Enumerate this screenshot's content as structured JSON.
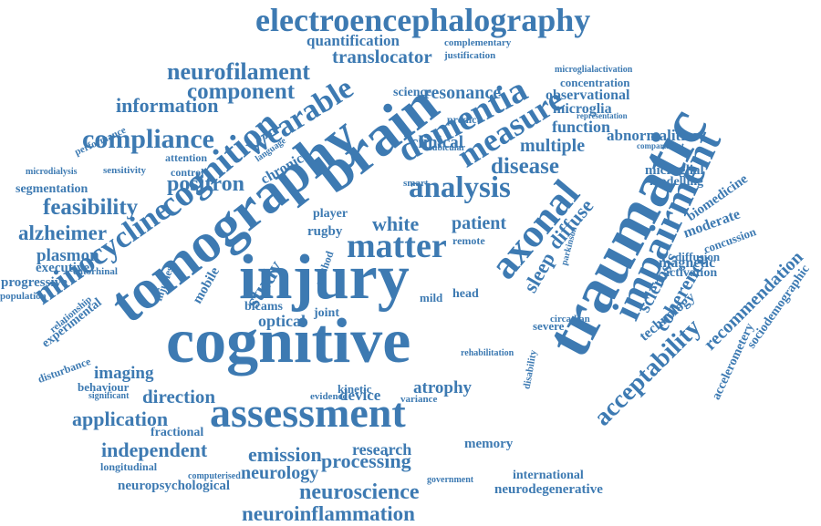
{
  "color": "#3d7ab2",
  "words": [
    "electroencephalography",
    "quantification",
    "translocator",
    "complementary",
    "justification",
    "neurofilament",
    "component",
    "resonance",
    "microglialactivation",
    "concentration",
    "information",
    "wearable",
    "dementia",
    "observational",
    "microglia",
    "science",
    "compliance",
    "brain",
    "measure",
    "function",
    "representation",
    "abnormalities",
    "cognition",
    "clinical",
    "multiple",
    "compartment",
    "chronic",
    "disease",
    "microglial",
    "positron",
    "analysis",
    "modelling",
    "biomedicine",
    "segmentation",
    "feasibility",
    "alzheimer",
    "tomography",
    "white",
    "patient",
    "moderate",
    "concussion",
    "plasmon",
    "matter",
    "diffuse",
    "diffusion",
    "minocycline",
    "axonal",
    "parkinson",
    "magnetic",
    "activation",
    "executive",
    "progressive",
    "injury",
    "sleep",
    "impairment",
    "technology",
    "recommendation",
    "population",
    "study",
    "sclerosis",
    "coherence",
    "sociodemographic",
    "optical",
    "head",
    "traumatic",
    "rugby",
    "bicams",
    "joint",
    "mild",
    "severe",
    "circadian",
    "experimental",
    "cognitive",
    "imaging",
    "behaviour",
    "direction",
    "atrophy",
    "device",
    "accelerometery",
    "acceptability",
    "application",
    "assessment",
    "memory",
    "independent",
    "emission",
    "research",
    "fractional",
    "processing",
    "international",
    "neurology",
    "longitudinal",
    "neuropsychological",
    "neuroscience",
    "neurodegenerative",
    "neuroinflammation",
    "performance",
    "microdialysis",
    "sensitivity",
    "attention",
    "control",
    "language",
    "predict",
    "subicular",
    "smart",
    "remote",
    "kinetic",
    "evidence",
    "variance",
    "disability",
    "government",
    "computerised",
    "disturbance",
    "significant",
    "entorhinal",
    "relationship",
    "injuries",
    "mobile",
    "player",
    "method",
    "rehabilitation"
  ]
}
